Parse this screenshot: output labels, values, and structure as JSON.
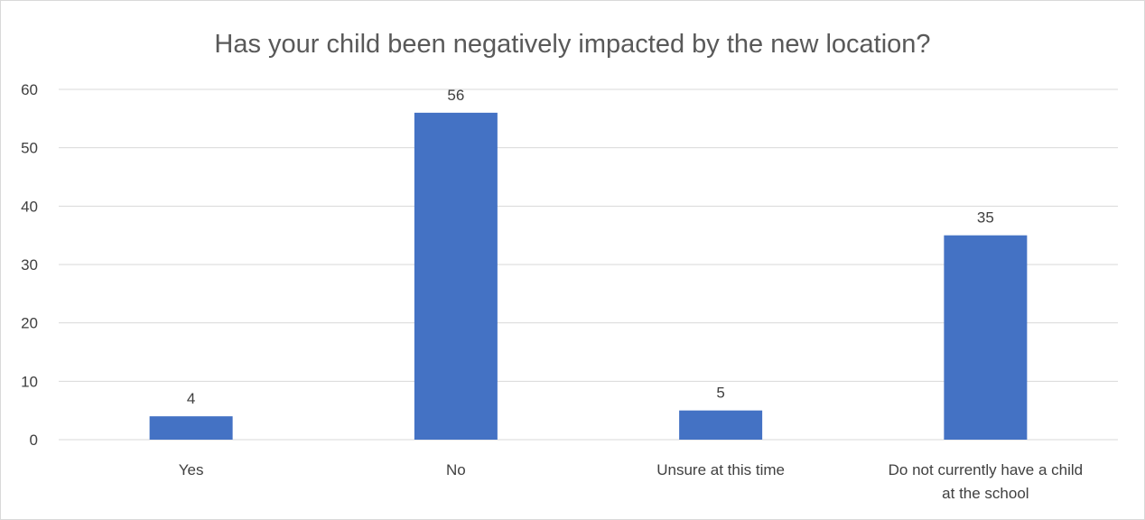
{
  "chart_data": {
    "type": "bar",
    "title": "Has your child been negatively impacted by the new location?",
    "categories": [
      [
        "Yes"
      ],
      [
        "No"
      ],
      [
        "Unsure at this time"
      ],
      [
        "Do not currently have a child",
        "at the school"
      ]
    ],
    "values": [
      4,
      56,
      5,
      35
    ],
    "ylim": [
      0,
      60
    ],
    "yticks": [
      0,
      10,
      20,
      30,
      40,
      50,
      60
    ],
    "grid": true,
    "bar_color": "#4472c4",
    "grid_color": "#d9d9d9"
  }
}
